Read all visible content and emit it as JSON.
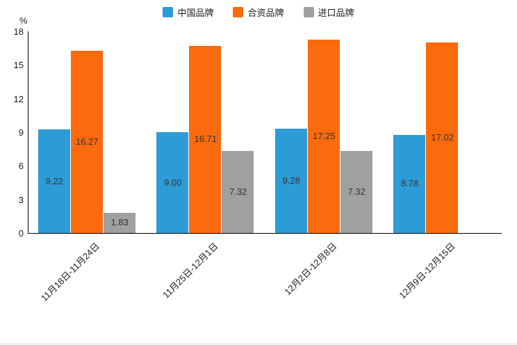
{
  "legend": {
    "items": [
      {
        "label": "中国品牌",
        "color": "#2D9CD6"
      },
      {
        "label": "合资品牌",
        "color": "#FB6A0D"
      },
      {
        "label": "进口品牌",
        "color": "#A0A0A0"
      }
    ]
  },
  "axis": {
    "unit_label": "%",
    "y_ticks": [
      0,
      3,
      6,
      9,
      12,
      15,
      18
    ]
  },
  "chart_data": {
    "type": "bar",
    "title": "",
    "categories": [
      "11月18日-11月24日",
      "11月25日-12月1日",
      "12月2日-12月8日",
      "12月9日-12月15日"
    ],
    "series": [
      {
        "name": "中国品牌",
        "color": "#2D9CD6",
        "values": [
          9.22,
          9.0,
          9.28,
          8.78
        ]
      },
      {
        "name": "合资品牌",
        "color": "#FB6A0D",
        "values": [
          16.27,
          16.71,
          17.25,
          17.02
        ]
      },
      {
        "name": "进口品牌",
        "color": "#A0A0A0",
        "values": [
          1.83,
          7.32,
          7.32,
          null
        ]
      }
    ],
    "xlabel": "",
    "ylabel": "%",
    "ylim": [
      0,
      18
    ],
    "grid": false,
    "legend_position": "top",
    "value_label_decimals": 2
  }
}
